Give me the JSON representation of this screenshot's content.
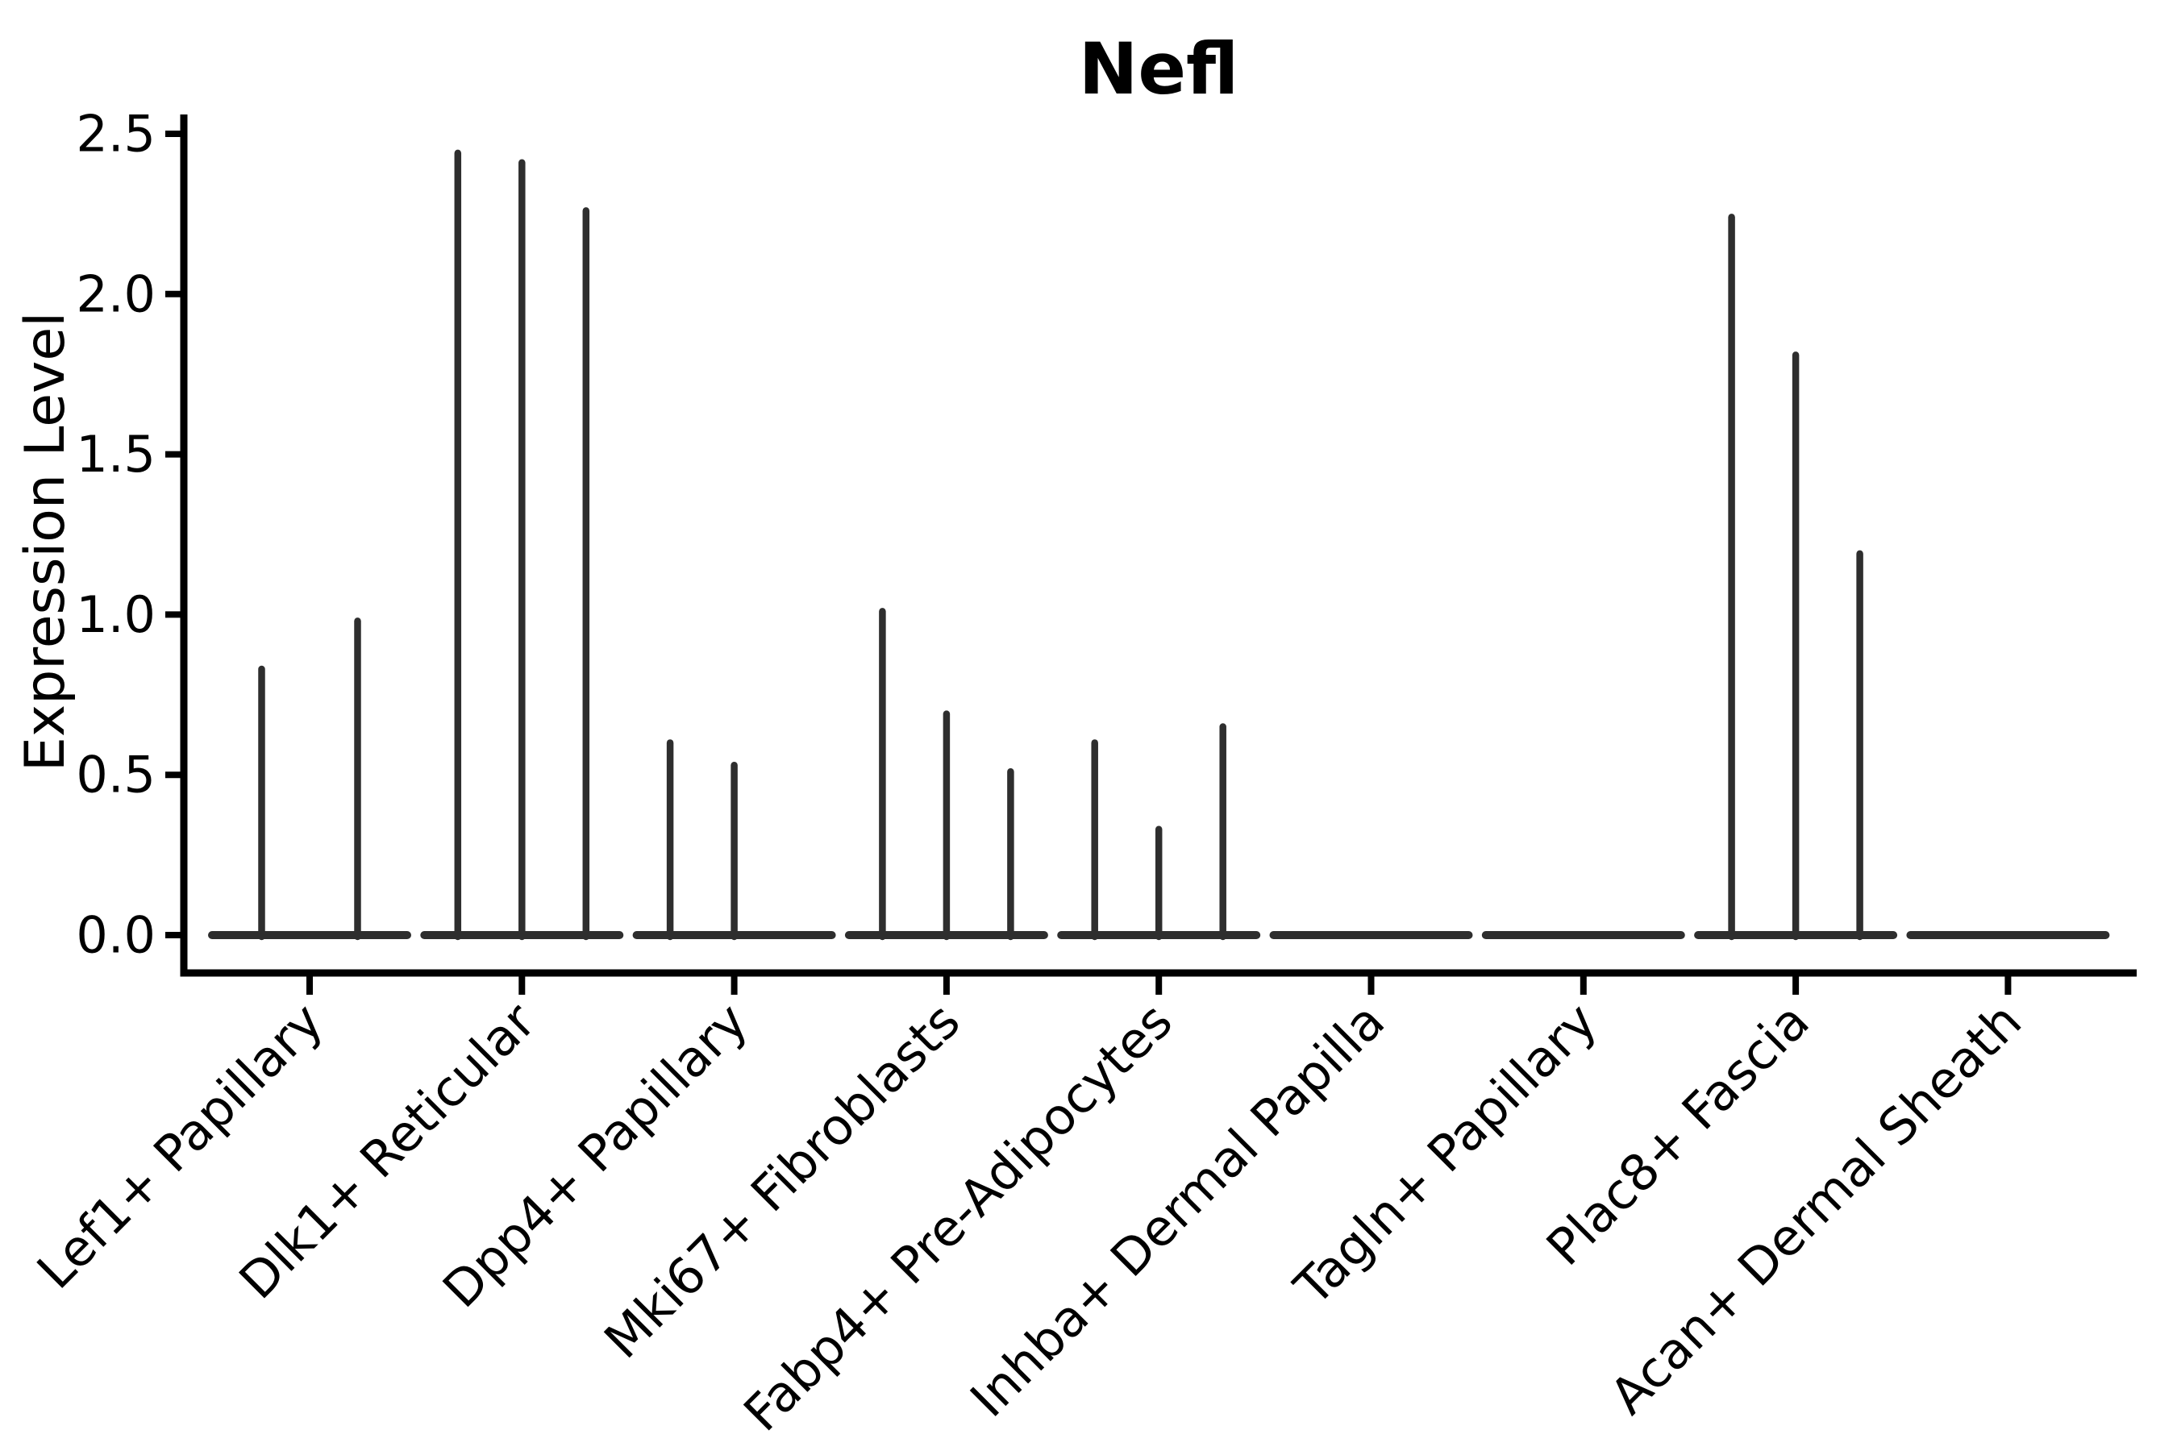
{
  "chart_data": {
    "type": "violin",
    "title": "Nefl",
    "xlabel": "",
    "ylabel": "Expression Level",
    "ylim": [
      -0.12,
      2.56
    ],
    "yticks": [
      0.0,
      0.5,
      1.0,
      1.5,
      2.0,
      2.5
    ],
    "ytick_labels": [
      "0.0",
      "0.5",
      "1.0",
      "1.5",
      "2.0",
      "2.5"
    ],
    "grid": false,
    "legend": "none",
    "x_tick_rotation_deg": 45,
    "categories": [
      "Lef1+ Papillary",
      "Dlk1+ Reticular",
      "Dpp4+ Papillary",
      "Mki67+ Fibroblasts",
      "Fabp4+ Pre-Adipocytes",
      "Inhba+ Dermal Papilla",
      "Tagln+ Papillary",
      "Plac8+ Fascia",
      "Acan+ Dermal Sheath"
    ],
    "violins_per_category": [
      2,
      3,
      3,
      3,
      3,
      3,
      3,
      3,
      3
    ],
    "violin_maxima": [
      [
        0.83,
        0.98
      ],
      [
        2.44,
        2.41,
        2.26
      ],
      [
        0.6,
        0.53,
        0
      ],
      [
        1.01,
        0.69,
        0.51
      ],
      [
        0.6,
        0.33,
        0.65
      ],
      [
        0,
        0,
        0
      ],
      [
        0,
        0,
        0
      ],
      [
        2.24,
        1.81,
        1.19
      ],
      [
        0,
        0,
        0
      ]
    ],
    "violin_min": 0.0,
    "line_color": "#2e2e2e",
    "axis_color": "#000000",
    "background_color": "#ffffff"
  }
}
